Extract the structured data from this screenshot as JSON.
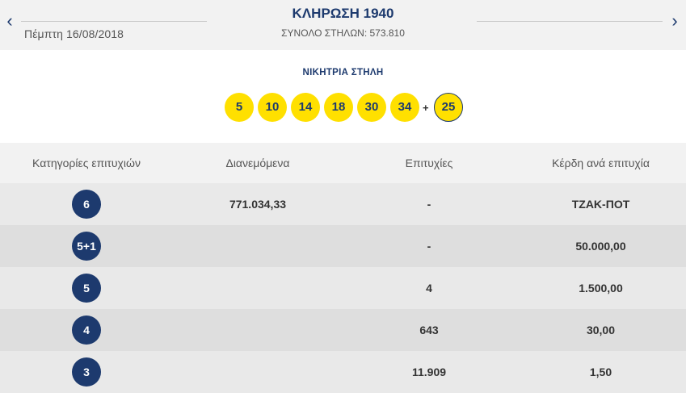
{
  "header": {
    "prev_icon": "chevron-left-icon",
    "next_icon": "chevron-right-icon",
    "date": "Πέμπτη 16/08/2018",
    "draw_title": "ΚΛΗΡΩΣΗ 1940",
    "total_columns": "ΣΥΝΟΛΟ ΣΤΗΛΩΝ: 573.810"
  },
  "winning": {
    "label": "ΝΙΚΗΤΡΙΑ ΣΤΗΛΗ",
    "numbers": [
      "5",
      "10",
      "14",
      "18",
      "30",
      "34"
    ],
    "plus": "+",
    "bonus": "25"
  },
  "colors": {
    "navy": "#1d3a6e",
    "ball_yellow": "#ffe000",
    "row_odd": "#e9e9e9",
    "row_even": "#dedede"
  },
  "table": {
    "headers": [
      "Κατηγορίες επιτυχιών",
      "Διανεμόμενα",
      "Επιτυχίες",
      "Κέρδη ανά επιτυχία"
    ],
    "rows": [
      {
        "category": "6",
        "distributed": "771.034,33",
        "winners": "-",
        "prize": "ΤΖΑΚ-ΠΟΤ"
      },
      {
        "category": "5+1",
        "distributed": "",
        "winners": "-",
        "prize": "50.000,00"
      },
      {
        "category": "5",
        "distributed": "",
        "winners": "4",
        "prize": "1.500,00"
      },
      {
        "category": "4",
        "distributed": "",
        "winners": "643",
        "prize": "30,00"
      },
      {
        "category": "3",
        "distributed": "",
        "winners": "11.909",
        "prize": "1,50"
      }
    ]
  }
}
